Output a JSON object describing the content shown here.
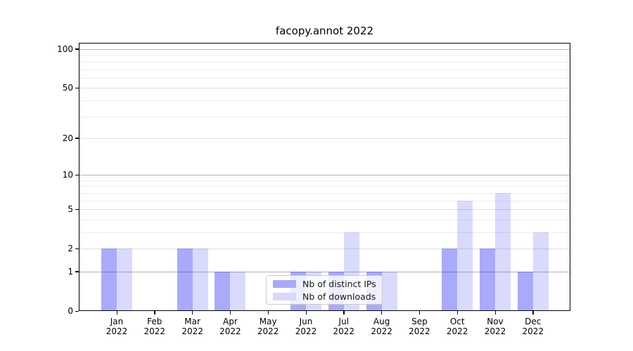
{
  "figure": {
    "background": "#ffffff"
  },
  "chart_data": {
    "type": "bar",
    "title": "facopy.annot 2022",
    "categories": [
      "Jan",
      "Feb",
      "Mar",
      "Apr",
      "May",
      "Jun",
      "Jul",
      "Aug",
      "Sep",
      "Oct",
      "Nov",
      "Dec"
    ],
    "x_tick_year": "2022",
    "series": [
      {
        "name": "Nb of distinct IPs",
        "color": "rgba(10,10,240,0.345)",
        "legend_color": "#a9a9f7",
        "values": [
          2,
          0,
          2,
          1,
          0,
          1,
          1,
          1,
          0,
          2,
          2,
          1
        ]
      },
      {
        "name": "Nb of downloads",
        "color": "rgba(10,10,240,0.15)",
        "legend_color": "#d9d9f8",
        "values": [
          2,
          0,
          2,
          1,
          0,
          1,
          3,
          1,
          0,
          6,
          7,
          3
        ]
      }
    ],
    "yscale": "log1p",
    "ylim": [
      0,
      113
    ],
    "y_major_ticks": [
      0,
      1,
      2,
      5,
      10,
      20,
      50,
      100
    ],
    "y_decade_lines": [
      1,
      10,
      100
    ],
    "y_other_major_lines": [
      2,
      5,
      20,
      50
    ],
    "y_minor_lines": [
      3,
      4,
      6,
      7,
      8,
      9,
      30,
      40,
      60,
      70,
      80,
      90
    ],
    "grid": true,
    "legend_position": "lower center"
  }
}
